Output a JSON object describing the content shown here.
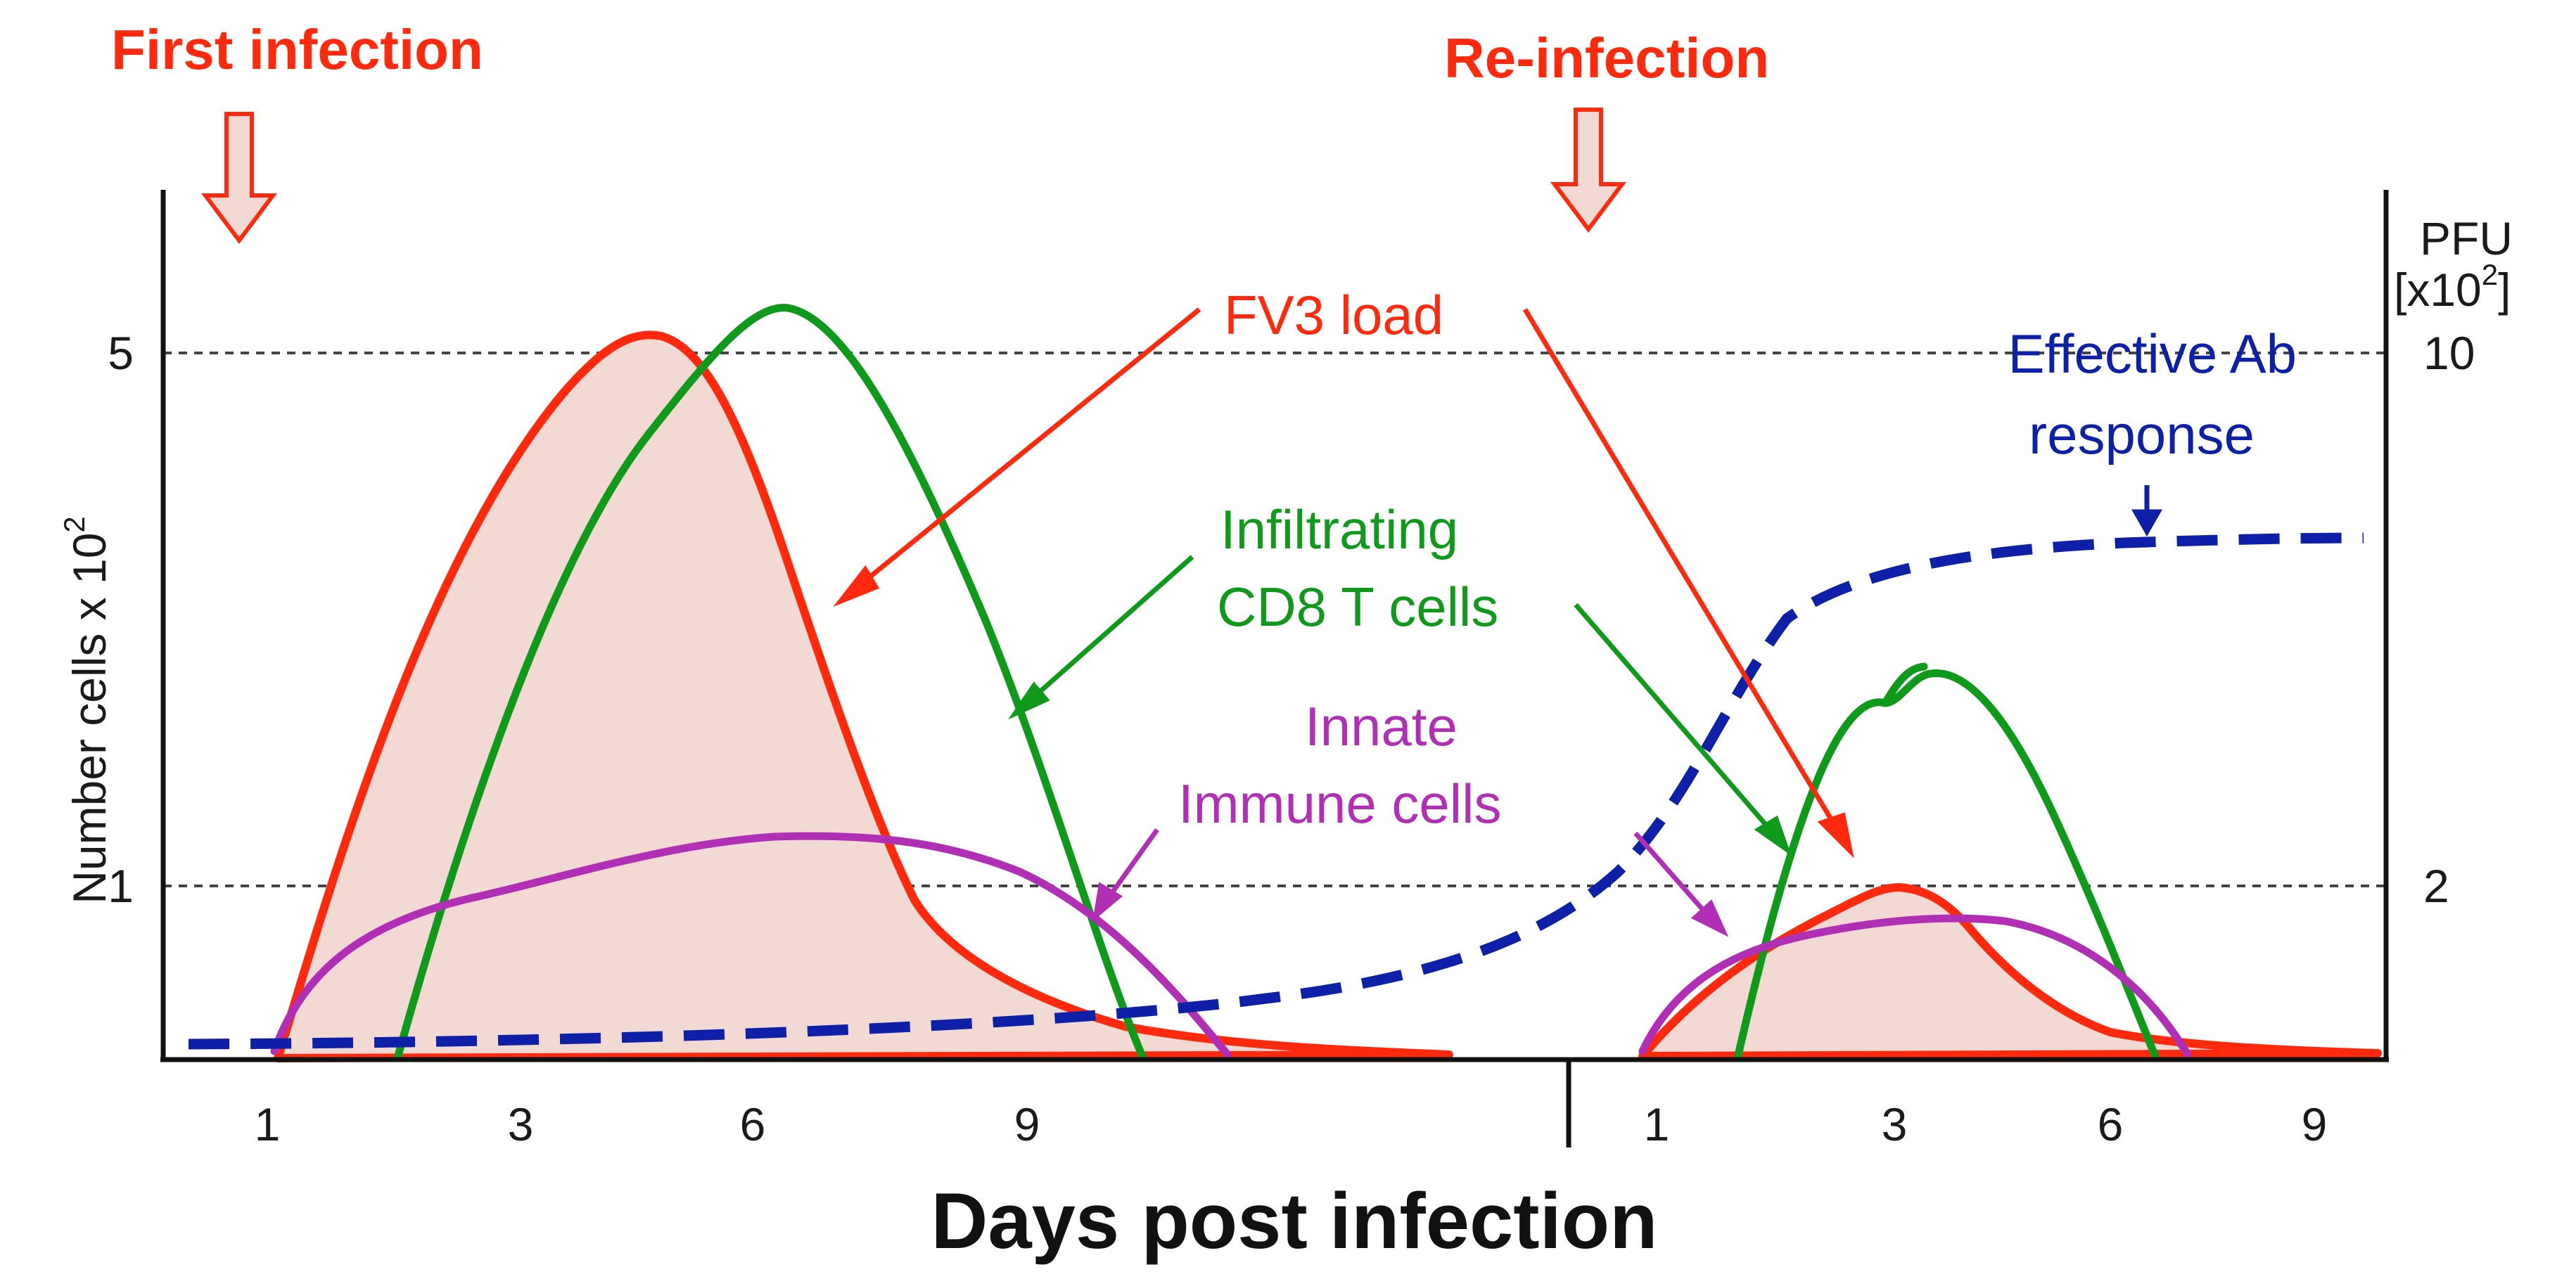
{
  "headers": {
    "first_infection": "First infection",
    "re_infection": "Re-infection"
  },
  "axes": {
    "y_left_title": "Number cells x 10",
    "y_left_exp": "2",
    "y_left_ticks": [
      "5",
      "1"
    ],
    "y_right_title_line1": "PFU",
    "y_right_title_line2_pre": "[x10",
    "y_right_title_line2_exp": "2",
    "y_right_title_line2_post": "]",
    "y_right_ticks": [
      "10",
      "2"
    ],
    "x_title": "Days post infection",
    "x_ticks_first": [
      "1",
      "3",
      "6",
      "9"
    ],
    "x_ticks_second": [
      "1",
      "3",
      "6",
      "9"
    ]
  },
  "annotations": {
    "fv3_load": "FV3 load",
    "effective_ab_line1": "Effective Ab",
    "effective_ab_line2": "response",
    "cd8_line1": "Infiltrating",
    "cd8_line2": "CD8 T cells",
    "innate_line1": "Innate",
    "innate_line2": "Immune cells"
  },
  "colors": {
    "fv3": "#ff2a0d",
    "fv3_fill": "#f2d9d4",
    "cd8": "#0f9a1b",
    "innate": "#b02fb5",
    "ab": "#0e1fa8",
    "axis": "#111111",
    "grid": "#444444"
  }
}
